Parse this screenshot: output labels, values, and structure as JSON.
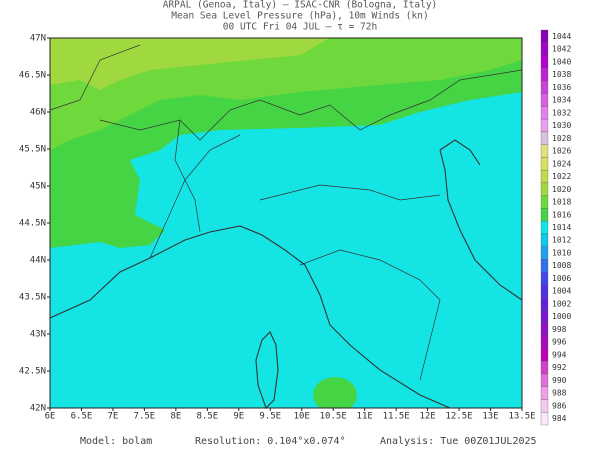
{
  "header": {
    "line1": "ARPAL (Genoa, Italy)  –  ISAC-CNR (Bologna, Italy)",
    "line2": "Mean Sea Level Pressure (hPa), 10m Winds (kn)",
    "line3": "00 UTC Fri 04 JUL  –  τ = 72h"
  },
  "axes": {
    "lat_labels": [
      "47N",
      "46.5N",
      "46N",
      "45.5N",
      "45N",
      "44.5N",
      "44N",
      "43.5N",
      "43N",
      "42.5N",
      "42N"
    ],
    "lon_labels": [
      "6E",
      "6.5E",
      "7E",
      "7.5E",
      "8E",
      "8.5E",
      "9E",
      "9.5E",
      "10E",
      "10.5E",
      "11E",
      "11.5E",
      "12E",
      "12.5E",
      "13E",
      "13.5E"
    ]
  },
  "colorbar": {
    "levels": [
      1044,
      1042,
      1040,
      1038,
      1036,
      1034,
      1032,
      1030,
      1028,
      1026,
      1024,
      1022,
      1020,
      1018,
      1016,
      1014,
      1012,
      1010,
      1008,
      1006,
      1004,
      1002,
      1000,
      998,
      996,
      994,
      992,
      990,
      988,
      986,
      984
    ],
    "colors": [
      "#8a00b8",
      "#a000c8",
      "#b400d0",
      "#c020d8",
      "#cc40dc",
      "#d860e0",
      "#e080e8",
      "#e8a0ec",
      "#d8c0e0",
      "#e0e080",
      "#d8e060",
      "#c0dc48",
      "#a0d840",
      "#6ed83c",
      "#44d444",
      "#14e4e4",
      "#10c8e8",
      "#20a0f0",
      "#3070f0",
      "#4048e8",
      "#5030e0",
      "#6020d8",
      "#7818d0",
      "#9010c8",
      "#a808c0",
      "#c000b8",
      "#d040c8",
      "#e070d8",
      "#eea0e6",
      "#f4c8f0",
      "#fae8fa"
    ]
  },
  "footer": {
    "model": "Model:  bolam",
    "resolution": "Resolution: 0.104°x0.074°",
    "analysis": "Analysis: Tue 00Z01JUL2025"
  }
}
